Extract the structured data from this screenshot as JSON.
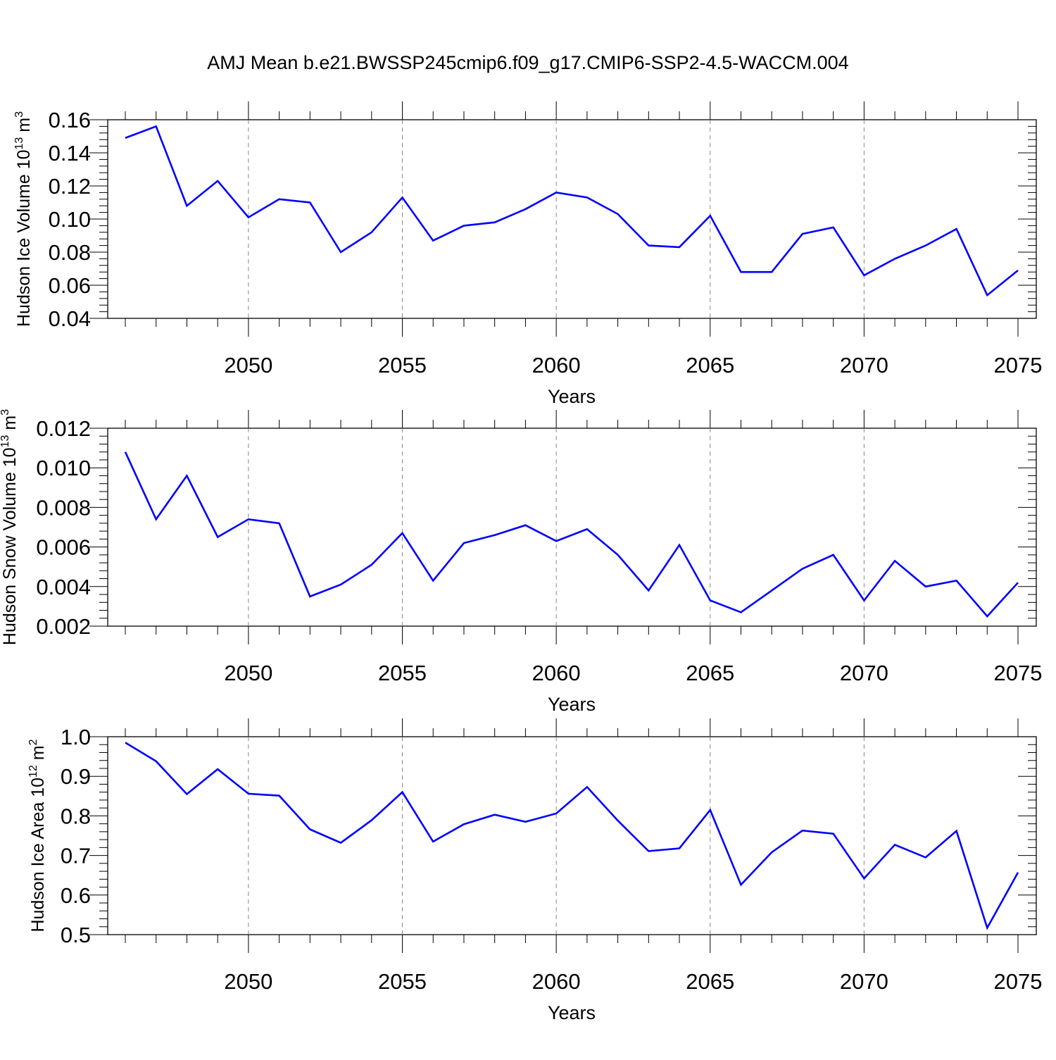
{
  "title": "AMJ Mean b.e21.BWSSP245cmip6.f09_g17.CMIP6-SSP2-4.5-WACCM.004",
  "colors": {
    "line": "#0000ff",
    "axis": "#000000",
    "grid": "#888888"
  },
  "chart_data": [
    {
      "type": "line",
      "ylabel": {
        "text": "Hudson Ice Volume 10",
        "sup": "13",
        "unit": " m",
        "unit_sup": "3"
      },
      "xlabel": "Years",
      "xlim": [
        2046,
        2075
      ],
      "ylim": [
        0.04,
        0.16
      ],
      "x_ticks": [
        2050,
        2055,
        2060,
        2065,
        2070,
        2075
      ],
      "x_tick_labels": [
        "2050",
        "2055",
        "2060",
        "2065",
        "2070",
        "2075"
      ],
      "y_ticks": [
        0.04,
        0.06,
        0.08,
        0.1,
        0.12,
        0.14,
        0.16
      ],
      "y_tick_labels": [
        "0.04",
        "0.06",
        "0.08",
        "0.10",
        "0.12",
        "0.14",
        "0.16"
      ],
      "grid": "vertical dashed at major x ticks",
      "x": [
        2046,
        2047,
        2048,
        2049,
        2050,
        2051,
        2052,
        2053,
        2054,
        2055,
        2056,
        2057,
        2058,
        2059,
        2060,
        2061,
        2062,
        2063,
        2064,
        2065,
        2066,
        2067,
        2068,
        2069,
        2070,
        2071,
        2072,
        2073,
        2074,
        2075
      ],
      "values": [
        0.149,
        0.156,
        0.108,
        0.123,
        0.101,
        0.112,
        0.11,
        0.08,
        0.092,
        0.113,
        0.087,
        0.096,
        0.098,
        0.106,
        0.116,
        0.113,
        0.103,
        0.084,
        0.083,
        0.102,
        0.068,
        0.068,
        0.091,
        0.095,
        0.066,
        0.076,
        0.084,
        0.094,
        0.054,
        0.069
      ]
    },
    {
      "type": "line",
      "ylabel": {
        "text": "Hudson Snow Volume 10",
        "sup": "13",
        "unit": " m",
        "unit_sup": "3"
      },
      "xlabel": "Years",
      "xlim": [
        2046,
        2075
      ],
      "ylim": [
        0.002,
        0.012
      ],
      "x_ticks": [
        2050,
        2055,
        2060,
        2065,
        2070,
        2075
      ],
      "x_tick_labels": [
        "2050",
        "2055",
        "2060",
        "2065",
        "2070",
        "2075"
      ],
      "y_ticks": [
        0.002,
        0.004,
        0.006,
        0.008,
        0.01,
        0.012
      ],
      "y_tick_labels": [
        "0.002",
        "0.004",
        "0.006",
        "0.008",
        "0.010",
        "0.012"
      ],
      "grid": "vertical dashed at major x ticks",
      "x": [
        2046,
        2047,
        2048,
        2049,
        2050,
        2051,
        2052,
        2053,
        2054,
        2055,
        2056,
        2057,
        2058,
        2059,
        2060,
        2061,
        2062,
        2063,
        2064,
        2065,
        2066,
        2067,
        2068,
        2069,
        2070,
        2071,
        2072,
        2073,
        2074,
        2075
      ],
      "values": [
        0.0108,
        0.0074,
        0.0096,
        0.0065,
        0.0074,
        0.0072,
        0.0035,
        0.0041,
        0.0051,
        0.0067,
        0.0043,
        0.0062,
        0.0066,
        0.0071,
        0.0063,
        0.0069,
        0.0056,
        0.0038,
        0.0061,
        0.0033,
        0.0027,
        0.0038,
        0.0049,
        0.0056,
        0.0033,
        0.0053,
        0.004,
        0.0043,
        0.0025,
        0.0042
      ]
    },
    {
      "type": "line",
      "ylabel": {
        "text": "Hudson Ice Area 10",
        "sup": "12",
        "unit": " m",
        "unit_sup": "2"
      },
      "xlabel": "Years",
      "xlim": [
        2046,
        2075
      ],
      "ylim": [
        0.5,
        1.0
      ],
      "x_ticks": [
        2050,
        2055,
        2060,
        2065,
        2070,
        2075
      ],
      "x_tick_labels": [
        "2050",
        "2055",
        "2060",
        "2065",
        "2070",
        "2075"
      ],
      "y_ticks": [
        0.5,
        0.6,
        0.7,
        0.8,
        0.9,
        1.0
      ],
      "y_tick_labels": [
        "0.5",
        "0.6",
        "0.7",
        "0.8",
        "0.9",
        "1.0"
      ],
      "grid": "vertical dashed at major x ticks",
      "x": [
        2046,
        2047,
        2048,
        2049,
        2050,
        2051,
        2052,
        2053,
        2054,
        2055,
        2056,
        2057,
        2058,
        2059,
        2060,
        2061,
        2062,
        2063,
        2064,
        2065,
        2066,
        2067,
        2068,
        2069,
        2070,
        2071,
        2072,
        2073,
        2074,
        2075
      ],
      "values": [
        0.985,
        0.938,
        0.855,
        0.918,
        0.856,
        0.851,
        0.766,
        0.732,
        0.789,
        0.86,
        0.735,
        0.779,
        0.803,
        0.785,
        0.806,
        0.873,
        0.788,
        0.711,
        0.718,
        0.815,
        0.626,
        0.708,
        0.763,
        0.755,
        0.642,
        0.727,
        0.695,
        0.762,
        0.517,
        0.657
      ]
    }
  ]
}
